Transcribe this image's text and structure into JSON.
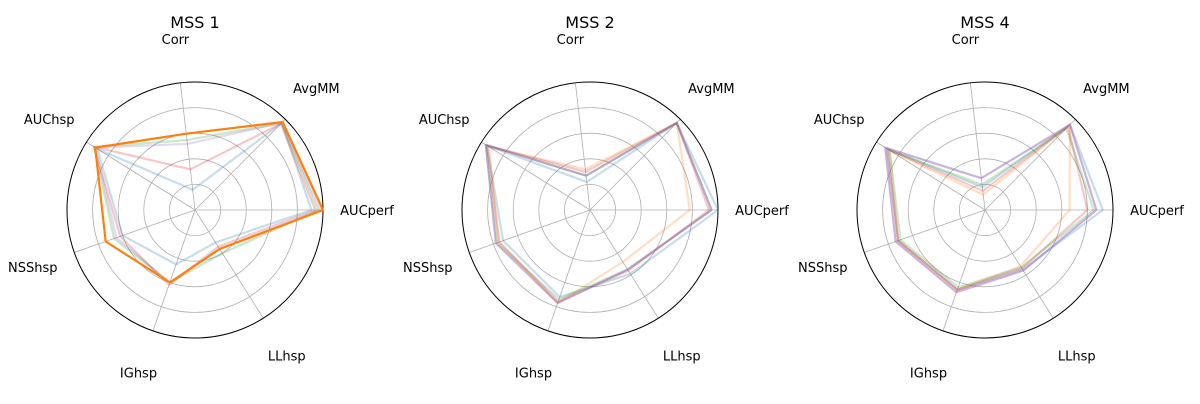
{
  "chart_data": [
    {
      "type": "radar",
      "title": "MSS 1",
      "axes": [
        "AUCperf",
        "AvgMM",
        "Corr",
        "AUChsp",
        "NSShsp",
        "IGhsp",
        "LLhsp"
      ],
      "rlim": [
        0,
        1
      ],
      "grid": true,
      "series": [
        {
          "color": "#1f77b4",
          "opacity": 0.25,
          "values": [
            0.91,
            0.96,
            0.16,
            0.9,
            0.6,
            0.45,
            0.3
          ]
        },
        {
          "color": "#2ca02c",
          "opacity": 0.25,
          "values": [
            0.96,
            0.96,
            0.55,
            0.93,
            0.67,
            0.6,
            0.4
          ]
        },
        {
          "color": "#d62728",
          "opacity": 0.25,
          "values": [
            0.94,
            0.95,
            0.32,
            0.93,
            0.62,
            0.62,
            0.34
          ]
        },
        {
          "color": "#9467bd",
          "opacity": 0.25,
          "values": [
            0.98,
            0.96,
            0.52,
            0.92,
            0.65,
            0.6,
            0.36
          ]
        },
        {
          "color": "#ff7f0e",
          "opacity": 1.0,
          "emphasis": true,
          "values": [
            1.0,
            0.97,
            0.6,
            0.92,
            0.74,
            0.6,
            0.36
          ]
        }
      ]
    },
    {
      "type": "radar",
      "title": "MSS 2",
      "axes": [
        "AUCperf",
        "AvgMM",
        "Corr",
        "AUChsp",
        "NSShsp",
        "IGhsp",
        "LLhsp"
      ],
      "rlim": [
        0,
        1
      ],
      "grid": true,
      "series": [
        {
          "color": "#1f77b4",
          "opacity": 0.25,
          "values": [
            1.0,
            0.96,
            0.22,
            0.95,
            0.72,
            0.72,
            0.59
          ]
        },
        {
          "color": "#ff7f0e",
          "opacity": 0.25,
          "values": [
            0.78,
            0.96,
            0.32,
            0.93,
            0.76,
            0.77,
            0.48
          ]
        },
        {
          "color": "#2ca02c",
          "opacity": 0.25,
          "values": [
            0.95,
            0.96,
            0.27,
            0.96,
            0.77,
            0.74,
            0.55
          ]
        },
        {
          "color": "#d62728",
          "opacity": 0.25,
          "values": [
            0.93,
            0.96,
            0.3,
            0.95,
            0.75,
            0.76,
            0.56
          ]
        },
        {
          "color": "#9467bd",
          "opacity": 0.45,
          "values": [
            0.95,
            0.96,
            0.27,
            0.96,
            0.78,
            0.77,
            0.55
          ]
        }
      ]
    },
    {
      "type": "radar",
      "title": "MSS 4",
      "axes": [
        "AUCperf",
        "AvgMM",
        "Corr",
        "AUChsp",
        "NSShsp",
        "IGhsp",
        "LLhsp"
      ],
      "rlim": [
        0,
        1
      ],
      "grid": true,
      "series": [
        {
          "color": "#1f77b4",
          "opacity": 0.25,
          "values": [
            0.92,
            0.94,
            0.18,
            0.9,
            0.72,
            0.66,
            0.55
          ]
        },
        {
          "color": "#ff7f0e",
          "opacity": 0.25,
          "values": [
            0.66,
            0.94,
            0.12,
            0.88,
            0.72,
            0.66,
            0.52
          ]
        },
        {
          "color": "#2ca02c",
          "opacity": 0.25,
          "values": [
            0.85,
            0.9,
            0.2,
            0.88,
            0.7,
            0.64,
            0.53
          ]
        },
        {
          "color": "#d62728",
          "opacity": 0.25,
          "values": [
            0.8,
            0.92,
            0.15,
            0.9,
            0.72,
            0.66,
            0.54
          ]
        },
        {
          "color": "#9467bd",
          "opacity": 0.5,
          "values": [
            0.87,
            0.94,
            0.25,
            0.92,
            0.74,
            0.68,
            0.56
          ]
        }
      ]
    }
  ]
}
